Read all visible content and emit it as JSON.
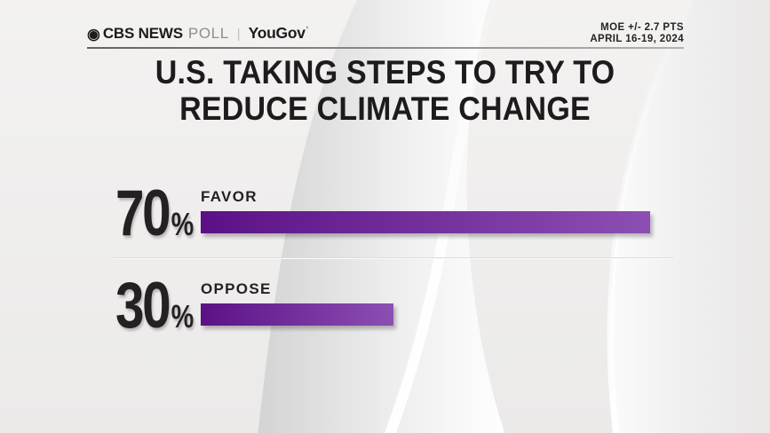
{
  "header": {
    "brand": {
      "cbs_eye_icon": "◉",
      "cbs": "CBS NEWS",
      "poll": "POLL",
      "separator": "|",
      "partner": "YouGov",
      "partner_mark": "ʼ"
    },
    "meta": {
      "moe": "MOE +/- 2.7 PTS",
      "dates": "APRIL 16-19, 2024"
    }
  },
  "title": {
    "line1": "U.S. TAKING STEPS TO TRY TO",
    "line2": "REDUCE CLIMATE CHANGE"
  },
  "chart_data": {
    "type": "bar",
    "orientation": "horizontal",
    "title": "U.S. TAKING STEPS TO TRY TO REDUCE CLIMATE CHANGE",
    "categories": [
      "FAVOR",
      "OPPOSE"
    ],
    "values": [
      70,
      30
    ],
    "unit": "%",
    "xlim": [
      0,
      100
    ],
    "grid": false,
    "legend": false,
    "bar_gradient": [
      "#5b1186",
      "#8c4fb3"
    ],
    "rows": [
      {
        "label": "FAVOR",
        "value": 70,
        "value_text": "70",
        "unit": "%"
      },
      {
        "label": "OPPOSE",
        "value": 30,
        "value_text": "30",
        "unit": "%"
      }
    ]
  },
  "colors": {
    "background": "#f0efee",
    "text_dark": "#1d1b1c",
    "accent_purple_dark": "#5b1186",
    "accent_purple_light": "#8c4fb3",
    "poll_gray": "#8e8d8d"
  }
}
